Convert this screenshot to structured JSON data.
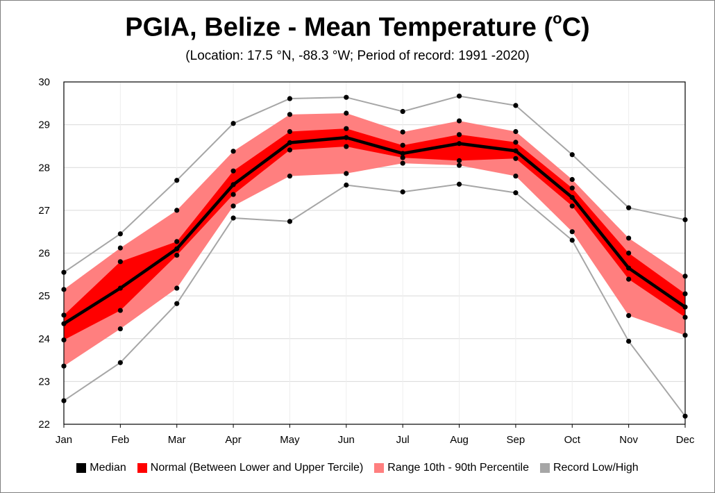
{
  "title": {
    "main": "PGIA, Belize - Mean Temperature (",
    "sup": "o",
    "tail": "C)"
  },
  "subtitle": "(Location: 17.5 °N, -88.3 °W; Period of record: 1991 -2020)",
  "colors": {
    "median": "#000000",
    "normal": "#ff0000",
    "range": "#ff7f7f",
    "record": "#a6a6a6",
    "grid": "#d9d9d9"
  },
  "legend": [
    {
      "label": "Median",
      "color": "#000000",
      "name": "legend-median"
    },
    {
      "label": "Normal (Between Lower and Upper Tercile)",
      "color": "#ff0000",
      "name": "legend-normal"
    },
    {
      "label": "Range 10th - 90th Percentile",
      "color": "#ff7f7f",
      "name": "legend-range"
    },
    {
      "label": "Record Low/High",
      "color": "#a6a6a6",
      "name": "legend-record"
    }
  ],
  "chart_data": {
    "type": "area",
    "categories": [
      "Jan",
      "Feb",
      "Mar",
      "Apr",
      "May",
      "Jun",
      "Jul",
      "Aug",
      "Sep",
      "Oct",
      "Nov",
      "Dec"
    ],
    "ylim": [
      22,
      30
    ],
    "yticks": [
      22,
      23,
      24,
      25,
      26,
      27,
      28,
      29,
      30
    ],
    "grid": true,
    "legend_position": "bottom",
    "series": [
      {
        "name": "Record Low/High",
        "role": "record_high",
        "values": [
          25.55,
          26.45,
          27.7,
          29.03,
          29.61,
          29.64,
          29.31,
          29.67,
          29.45,
          28.3,
          27.06,
          26.78
        ]
      },
      {
        "name": "Range 10th - 90th Percentile",
        "role": "p90",
        "values": [
          25.15,
          26.12,
          27.0,
          28.38,
          29.24,
          29.27,
          28.83,
          29.09,
          28.84,
          27.72,
          26.35,
          25.46
        ]
      },
      {
        "name": "Normal (Between Lower and Upper Tercile)",
        "role": "upper_tercile",
        "values": [
          24.55,
          25.8,
          26.27,
          27.92,
          28.84,
          28.91,
          28.52,
          28.77,
          28.59,
          27.52,
          26.0,
          25.05
        ]
      },
      {
        "name": "Median",
        "role": "median",
        "values": [
          24.35,
          25.18,
          26.1,
          27.6,
          28.58,
          28.7,
          28.33,
          28.56,
          28.39,
          27.3,
          25.65,
          24.74
        ]
      },
      {
        "name": "Normal (Between Lower and Upper Tercile)",
        "role": "lower_tercile",
        "values": [
          23.97,
          24.66,
          25.95,
          27.37,
          28.41,
          28.49,
          28.23,
          28.16,
          28.21,
          27.1,
          25.39,
          24.5
        ]
      },
      {
        "name": "Range 10th - 90th Percentile",
        "role": "p10",
        "values": [
          23.36,
          24.23,
          25.18,
          27.1,
          27.8,
          27.86,
          28.1,
          28.05,
          27.8,
          26.5,
          24.54,
          24.08
        ]
      },
      {
        "name": "Record Low/High",
        "role": "record_low",
        "values": [
          22.55,
          23.44,
          24.82,
          26.82,
          26.74,
          27.59,
          27.43,
          27.61,
          27.41,
          26.3,
          23.94,
          22.19
        ]
      }
    ]
  }
}
